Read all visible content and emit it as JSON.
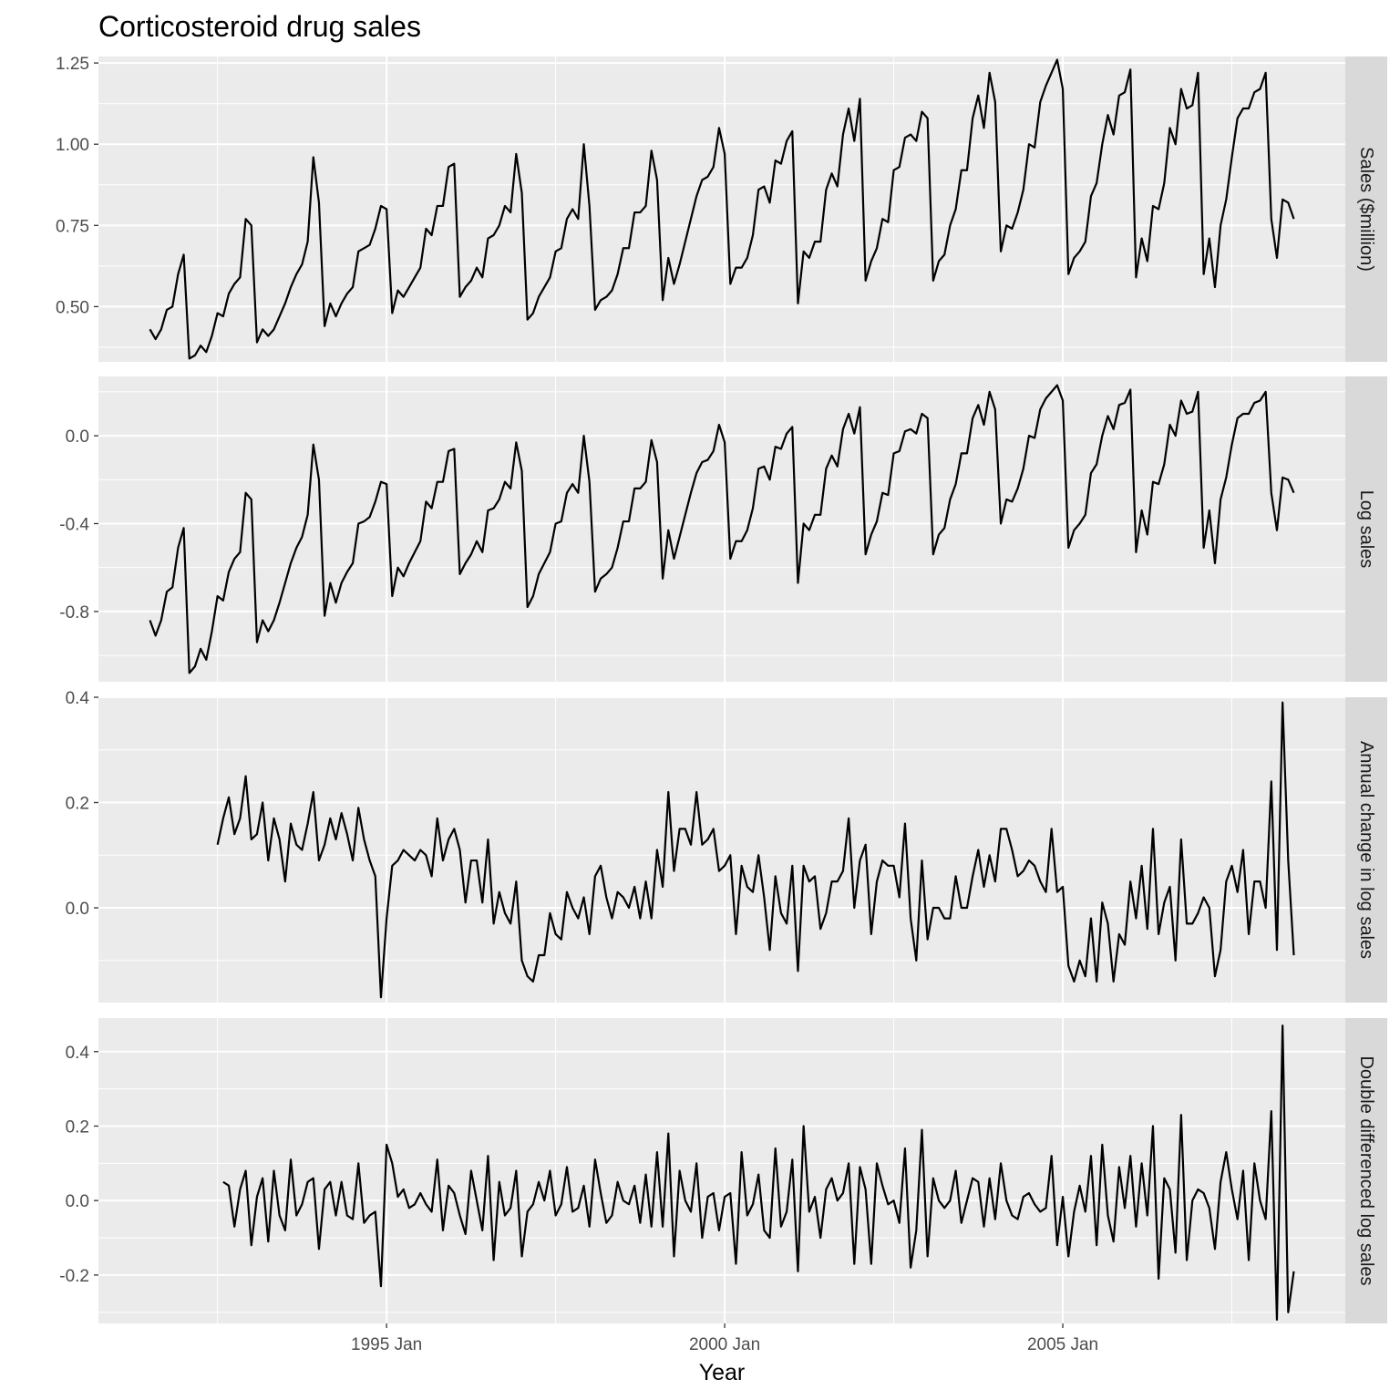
{
  "chart_data": {
    "type": "line",
    "title": "Corticosteroid drug sales",
    "xlabel": "Year",
    "x_ticks": [
      "1995 Jan",
      "2000 Jan",
      "2005 Jan"
    ],
    "x_start": "1991 Jul",
    "x_end": "2008 Jun",
    "grid": true,
    "panels": [
      {
        "name": "Sales ($million)",
        "ylim": [
          0.33,
          1.27
        ],
        "y_ticks": [
          0.5,
          0.75,
          1.0,
          1.25
        ],
        "y_tick_labels": [
          "0.50",
          "0.75",
          "1.00",
          "1.25"
        ],
        "values": [
          0.43,
          0.4,
          0.43,
          0.49,
          0.5,
          0.6,
          0.66,
          0.34,
          0.35,
          0.38,
          0.36,
          0.41,
          0.48,
          0.47,
          0.54,
          0.57,
          0.59,
          0.77,
          0.75,
          0.39,
          0.43,
          0.41,
          0.43,
          0.47,
          0.51,
          0.56,
          0.6,
          0.63,
          0.7,
          0.96,
          0.82,
          0.44,
          0.51,
          0.47,
          0.51,
          0.54,
          0.56,
          0.67,
          0.68,
          0.69,
          0.74,
          0.81,
          0.8,
          0.48,
          0.55,
          0.53,
          0.56,
          0.59,
          0.62,
          0.74,
          0.72,
          0.81,
          0.81,
          0.93,
          0.94,
          0.53,
          0.56,
          0.58,
          0.62,
          0.59,
          0.71,
          0.72,
          0.75,
          0.81,
          0.79,
          0.97,
          0.85,
          0.46,
          0.48,
          0.53,
          0.56,
          0.59,
          0.67,
          0.68,
          0.77,
          0.8,
          0.77,
          1.0,
          0.81,
          0.49,
          0.52,
          0.53,
          0.55,
          0.6,
          0.68,
          0.68,
          0.79,
          0.79,
          0.81,
          0.98,
          0.89,
          0.52,
          0.65,
          0.57,
          0.63,
          0.7,
          0.77,
          0.84,
          0.89,
          0.9,
          0.93,
          1.05,
          0.97,
          0.57,
          0.62,
          0.62,
          0.65,
          0.72,
          0.86,
          0.87,
          0.82,
          0.95,
          0.94,
          1.01,
          1.04,
          0.51,
          0.67,
          0.65,
          0.7,
          0.7,
          0.86,
          0.91,
          0.87,
          1.03,
          1.11,
          1.01,
          1.14,
          0.58,
          0.64,
          0.68,
          0.77,
          0.76,
          0.92,
          0.93,
          1.02,
          1.03,
          1.01,
          1.1,
          1.08,
          0.58,
          0.64,
          0.66,
          0.75,
          0.8,
          0.92,
          0.92,
          1.08,
          1.15,
          1.05,
          1.22,
          1.13,
          0.67,
          0.75,
          0.74,
          0.79,
          0.86,
          1.0,
          0.99,
          1.13,
          1.18,
          1.22,
          1.26,
          1.17,
          0.6,
          0.65,
          0.67,
          0.7,
          0.84,
          0.88,
          1.0,
          1.09,
          1.03,
          1.15,
          1.16,
          1.23,
          0.59,
          0.71,
          0.64,
          0.81,
          0.8,
          0.88,
          1.05,
          1.0,
          1.17,
          1.11,
          1.12,
          1.22,
          0.6,
          0.71,
          0.56,
          0.75,
          0.83,
          0.96,
          1.08,
          1.11,
          1.11,
          1.16,
          1.17,
          1.22,
          0.77,
          0.65,
          0.83,
          0.82,
          0.77
        ]
      },
      {
        "name": "Log sales",
        "ylim": [
          -1.12,
          0.27
        ],
        "y_ticks": [
          -0.8,
          -0.4,
          0.0
        ],
        "y_tick_labels": [
          "-0.8",
          "-0.4",
          "0.0"
        ],
        "values": [
          -0.84,
          -0.91,
          -0.84,
          -0.71,
          -0.69,
          -0.51,
          -0.42,
          -1.08,
          -1.05,
          -0.97,
          -1.02,
          -0.89,
          -0.73,
          -0.75,
          -0.62,
          -0.56,
          -0.53,
          -0.26,
          -0.29,
          -0.94,
          -0.84,
          -0.89,
          -0.84,
          -0.76,
          -0.67,
          -0.58,
          -0.51,
          -0.46,
          -0.36,
          -0.04,
          -0.2,
          -0.82,
          -0.67,
          -0.76,
          -0.67,
          -0.62,
          -0.58,
          -0.4,
          -0.39,
          -0.37,
          -0.3,
          -0.21,
          -0.22,
          -0.73,
          -0.6,
          -0.64,
          -0.58,
          -0.53,
          -0.48,
          -0.3,
          -0.33,
          -0.21,
          -0.21,
          -0.07,
          -0.06,
          -0.63,
          -0.58,
          -0.54,
          -0.48,
          -0.53,
          -0.34,
          -0.33,
          -0.29,
          -0.21,
          -0.24,
          -0.03,
          -0.16,
          -0.78,
          -0.73,
          -0.63,
          -0.58,
          -0.53,
          -0.4,
          -0.39,
          -0.26,
          -0.22,
          -0.26,
          0.0,
          -0.21,
          -0.71,
          -0.65,
          -0.63,
          -0.6,
          -0.51,
          -0.39,
          -0.39,
          -0.24,
          -0.24,
          -0.21,
          -0.02,
          -0.12,
          -0.65,
          -0.43,
          -0.56,
          -0.46,
          -0.36,
          -0.26,
          -0.17,
          -0.12,
          -0.11,
          -0.07,
          0.05,
          -0.03,
          -0.56,
          -0.48,
          -0.48,
          -0.43,
          -0.33,
          -0.15,
          -0.14,
          -0.2,
          -0.05,
          -0.06,
          0.01,
          0.04,
          -0.67,
          -0.4,
          -0.43,
          -0.36,
          -0.36,
          -0.15,
          -0.09,
          -0.14,
          0.03,
          0.1,
          0.01,
          0.13,
          -0.54,
          -0.45,
          -0.39,
          -0.26,
          -0.27,
          -0.08,
          -0.07,
          0.02,
          0.03,
          0.01,
          0.1,
          0.08,
          -0.54,
          -0.45,
          -0.42,
          -0.29,
          -0.22,
          -0.08,
          -0.08,
          0.08,
          0.14,
          0.05,
          0.2,
          0.12,
          -0.4,
          -0.29,
          -0.3,
          -0.24,
          -0.15,
          0.0,
          -0.01,
          0.12,
          0.17,
          0.2,
          0.23,
          0.16,
          -0.51,
          -0.43,
          -0.4,
          -0.36,
          -0.17,
          -0.13,
          0.0,
          0.09,
          0.03,
          0.14,
          0.15,
          0.21,
          -0.53,
          -0.34,
          -0.45,
          -0.21,
          -0.22,
          -0.13,
          0.05,
          0.0,
          0.16,
          0.1,
          0.11,
          0.2,
          -0.51,
          -0.34,
          -0.58,
          -0.29,
          -0.19,
          -0.04,
          0.08,
          0.1,
          0.1,
          0.15,
          0.16,
          0.2,
          -0.26,
          -0.43,
          -0.19,
          -0.2,
          -0.26
        ]
      },
      {
        "name": "Annual change in log sales",
        "ylim": [
          -0.18,
          0.4
        ],
        "y_ticks": [
          0.0,
          0.2,
          0.4
        ],
        "y_tick_labels": [
          "0.0",
          "0.2",
          "0.4"
        ],
        "start_index": 12,
        "values": [
          0.12,
          0.17,
          0.21,
          0.14,
          0.17,
          0.25,
          0.13,
          0.14,
          0.2,
          0.09,
          0.17,
          0.13,
          0.05,
          0.16,
          0.12,
          0.11,
          0.16,
          0.22,
          0.09,
          0.12,
          0.17,
          0.13,
          0.18,
          0.14,
          0.09,
          0.19,
          0.13,
          0.09,
          0.06,
          -0.17,
          -0.02,
          0.08,
          0.09,
          0.11,
          0.1,
          0.09,
          0.11,
          0.1,
          0.06,
          0.17,
          0.09,
          0.13,
          0.15,
          0.11,
          0.01,
          0.09,
          0.09,
          0.01,
          0.13,
          -0.03,
          0.03,
          -0.01,
          -0.03,
          0.05,
          -0.1,
          -0.13,
          -0.14,
          -0.09,
          -0.09,
          -0.01,
          -0.05,
          -0.06,
          0.03,
          0.0,
          -0.02,
          0.02,
          -0.05,
          0.06,
          0.08,
          0.02,
          -0.02,
          0.03,
          0.02,
          0.0,
          0.04,
          -0.02,
          0.05,
          -0.02,
          0.11,
          0.04,
          0.22,
          0.07,
          0.15,
          0.15,
          0.12,
          0.22,
          0.12,
          0.13,
          0.15,
          0.07,
          0.08,
          0.1,
          -0.05,
          0.08,
          0.04,
          0.03,
          0.1,
          0.02,
          -0.08,
          0.06,
          -0.01,
          -0.03,
          0.08,
          -0.12,
          0.08,
          0.05,
          0.06,
          -0.04,
          -0.01,
          0.05,
          0.05,
          0.07,
          0.17,
          0.0,
          0.09,
          0.12,
          -0.05,
          0.05,
          0.09,
          0.08,
          0.08,
          0.02,
          0.16,
          -0.02,
          -0.1,
          0.09,
          -0.06,
          0.0,
          0.0,
          -0.02,
          -0.02,
          0.06,
          0.0,
          0.0,
          0.06,
          0.11,
          0.04,
          0.1,
          0.05,
          0.15,
          0.15,
          0.11,
          0.06,
          0.07,
          0.09,
          0.08,
          0.05,
          0.03,
          0.15,
          0.03,
          0.04,
          -0.11,
          -0.14,
          -0.1,
          -0.13,
          -0.02,
          -0.14,
          0.01,
          -0.03,
          -0.14,
          -0.05,
          -0.07,
          0.05,
          -0.02,
          0.08,
          -0.04,
          0.15,
          -0.05,
          0.01,
          0.04,
          -0.1,
          0.13,
          -0.03,
          -0.03,
          -0.01,
          0.02,
          0.0,
          -0.13,
          -0.08,
          0.05,
          0.08,
          0.03,
          0.11,
          -0.05,
          0.05,
          0.05,
          0.0,
          0.24,
          -0.08,
          0.39,
          0.09,
          -0.09
        ]
      },
      {
        "name": "Double differenced log sales",
        "ylim": [
          -0.33,
          0.49
        ],
        "y_ticks": [
          -0.2,
          0.0,
          0.2,
          0.4
        ],
        "y_tick_labels": [
          "-0.2",
          "0.0",
          "0.2",
          "0.4"
        ],
        "start_index": 13,
        "values": [
          0.05,
          0.04,
          -0.07,
          0.03,
          0.08,
          -0.12,
          0.01,
          0.06,
          -0.11,
          0.08,
          -0.04,
          -0.08,
          0.11,
          -0.04,
          -0.01,
          0.05,
          0.06,
          -0.13,
          0.03,
          0.05,
          -0.04,
          0.05,
          -0.04,
          -0.05,
          0.1,
          -0.06,
          -0.04,
          -0.03,
          -0.23,
          0.15,
          0.1,
          0.01,
          0.03,
          -0.02,
          -0.01,
          0.02,
          -0.01,
          -0.03,
          0.11,
          -0.08,
          0.04,
          0.02,
          -0.04,
          -0.09,
          0.08,
          0.0,
          -0.08,
          0.12,
          -0.16,
          0.05,
          -0.04,
          -0.02,
          0.08,
          -0.15,
          -0.03,
          -0.01,
          0.05,
          0.0,
          0.08,
          -0.04,
          -0.01,
          0.09,
          -0.03,
          -0.02,
          0.04,
          -0.07,
          0.11,
          0.02,
          -0.06,
          -0.04,
          0.05,
          0.0,
          -0.01,
          0.04,
          -0.06,
          0.07,
          -0.07,
          0.13,
          -0.07,
          0.18,
          -0.15,
          0.08,
          0.0,
          -0.03,
          0.1,
          -0.1,
          0.01,
          0.02,
          -0.08,
          0.01,
          0.02,
          -0.17,
          0.13,
          -0.04,
          -0.01,
          0.07,
          -0.08,
          -0.1,
          0.14,
          -0.07,
          -0.03,
          0.11,
          -0.19,
          0.2,
          -0.03,
          0.01,
          -0.1,
          0.03,
          0.06,
          0.0,
          0.02,
          0.1,
          -0.17,
          0.09,
          0.03,
          -0.17,
          0.1,
          0.04,
          -0.01,
          0.0,
          -0.06,
          0.14,
          -0.18,
          -0.08,
          0.19,
          -0.15,
          0.06,
          0.0,
          -0.02,
          0.0,
          0.08,
          -0.06,
          0.0,
          0.06,
          0.05,
          -0.07,
          0.06,
          -0.05,
          0.1,
          0.0,
          -0.04,
          -0.05,
          0.01,
          0.02,
          -0.01,
          -0.03,
          -0.02,
          0.12,
          -0.12,
          0.01,
          -0.15,
          -0.03,
          0.04,
          -0.03,
          0.12,
          -0.12,
          0.15,
          -0.04,
          -0.11,
          0.09,
          -0.02,
          0.12,
          -0.07,
          0.1,
          -0.04,
          0.2,
          -0.21,
          0.06,
          0.03,
          -0.14,
          0.23,
          -0.16,
          0.0,
          0.03,
          0.02,
          -0.02,
          -0.13,
          0.05,
          0.13,
          0.03,
          -0.05,
          0.08,
          -0.16,
          0.1,
          0.0,
          -0.05,
          0.24,
          -0.32,
          0.47,
          -0.3,
          -0.19
        ]
      }
    ]
  }
}
